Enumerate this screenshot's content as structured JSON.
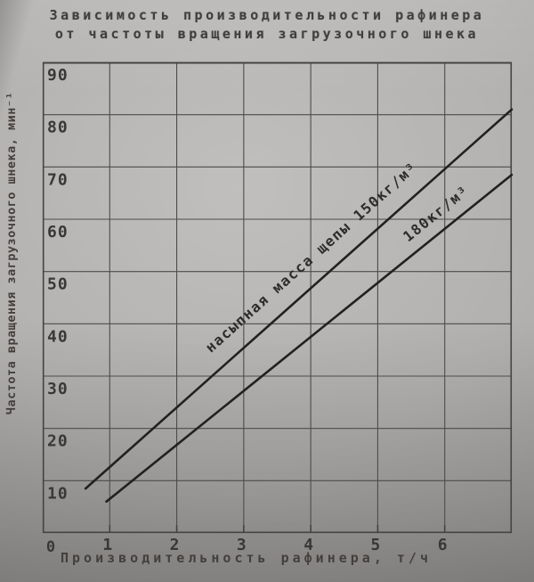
{
  "title": {
    "line1": "Зависимость производительности рафинера",
    "line2": "от частоты вращения загрузочного шнека"
  },
  "chart_data": {
    "type": "line",
    "title": "Зависимость производительности рафинера от частоты вращения загрузочного шнека",
    "xlabel": "Производительность рафинера, т/ч",
    "ylabel": "Частота вращения загрузочного шнека, мин⁻¹",
    "xlim": [
      0,
      7
    ],
    "ylim": [
      0,
      90
    ],
    "x_ticks": [
      1,
      2,
      3,
      4,
      5,
      6
    ],
    "y_ticks": [
      10,
      20,
      30,
      40,
      50,
      60,
      70,
      80,
      90
    ],
    "origin_label": "0",
    "grid": "on",
    "legend_position": "labels-along-lines",
    "series": [
      {
        "name": "насыпная масса щепы 150кг/м³",
        "points": [
          [
            0.64,
            8.5
          ],
          [
            7.0,
            81.0
          ]
        ]
      },
      {
        "name": "180кг/м³",
        "points": [
          [
            0.95,
            6.0
          ],
          [
            7.0,
            68.5
          ]
        ]
      }
    ]
  },
  "colors": {
    "paper": "#b3b1af",
    "ink": "#3a3836",
    "grid": "#4e4c4a",
    "border": "#454341",
    "line": "#23211f",
    "label_ink": "#2e2c2a"
  }
}
